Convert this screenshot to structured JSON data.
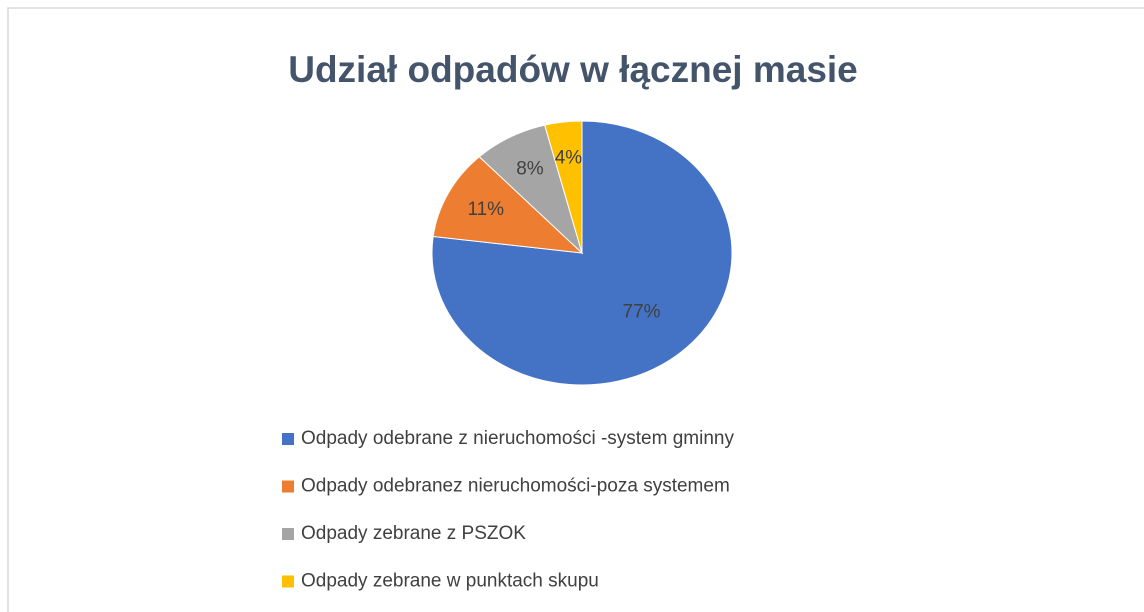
{
  "chart_data": {
    "type": "pie",
    "title": "Udział odpadów w łącznej masie",
    "categories": [
      "Odpady odebrane z nieruchomości -system gminny",
      "Odpady odebranez nieruchomości-poza systemem",
      "Odpady zebrane z PSZOK",
      "Odpady zebrane w punktach skupu"
    ],
    "values": [
      77,
      11,
      8,
      4
    ],
    "value_labels": [
      "77%",
      "11%",
      "8%",
      "4%"
    ],
    "colors": [
      "#4472c4",
      "#ed7d31",
      "#a5a5a5",
      "#ffc000"
    ],
    "legend": "bottom"
  }
}
